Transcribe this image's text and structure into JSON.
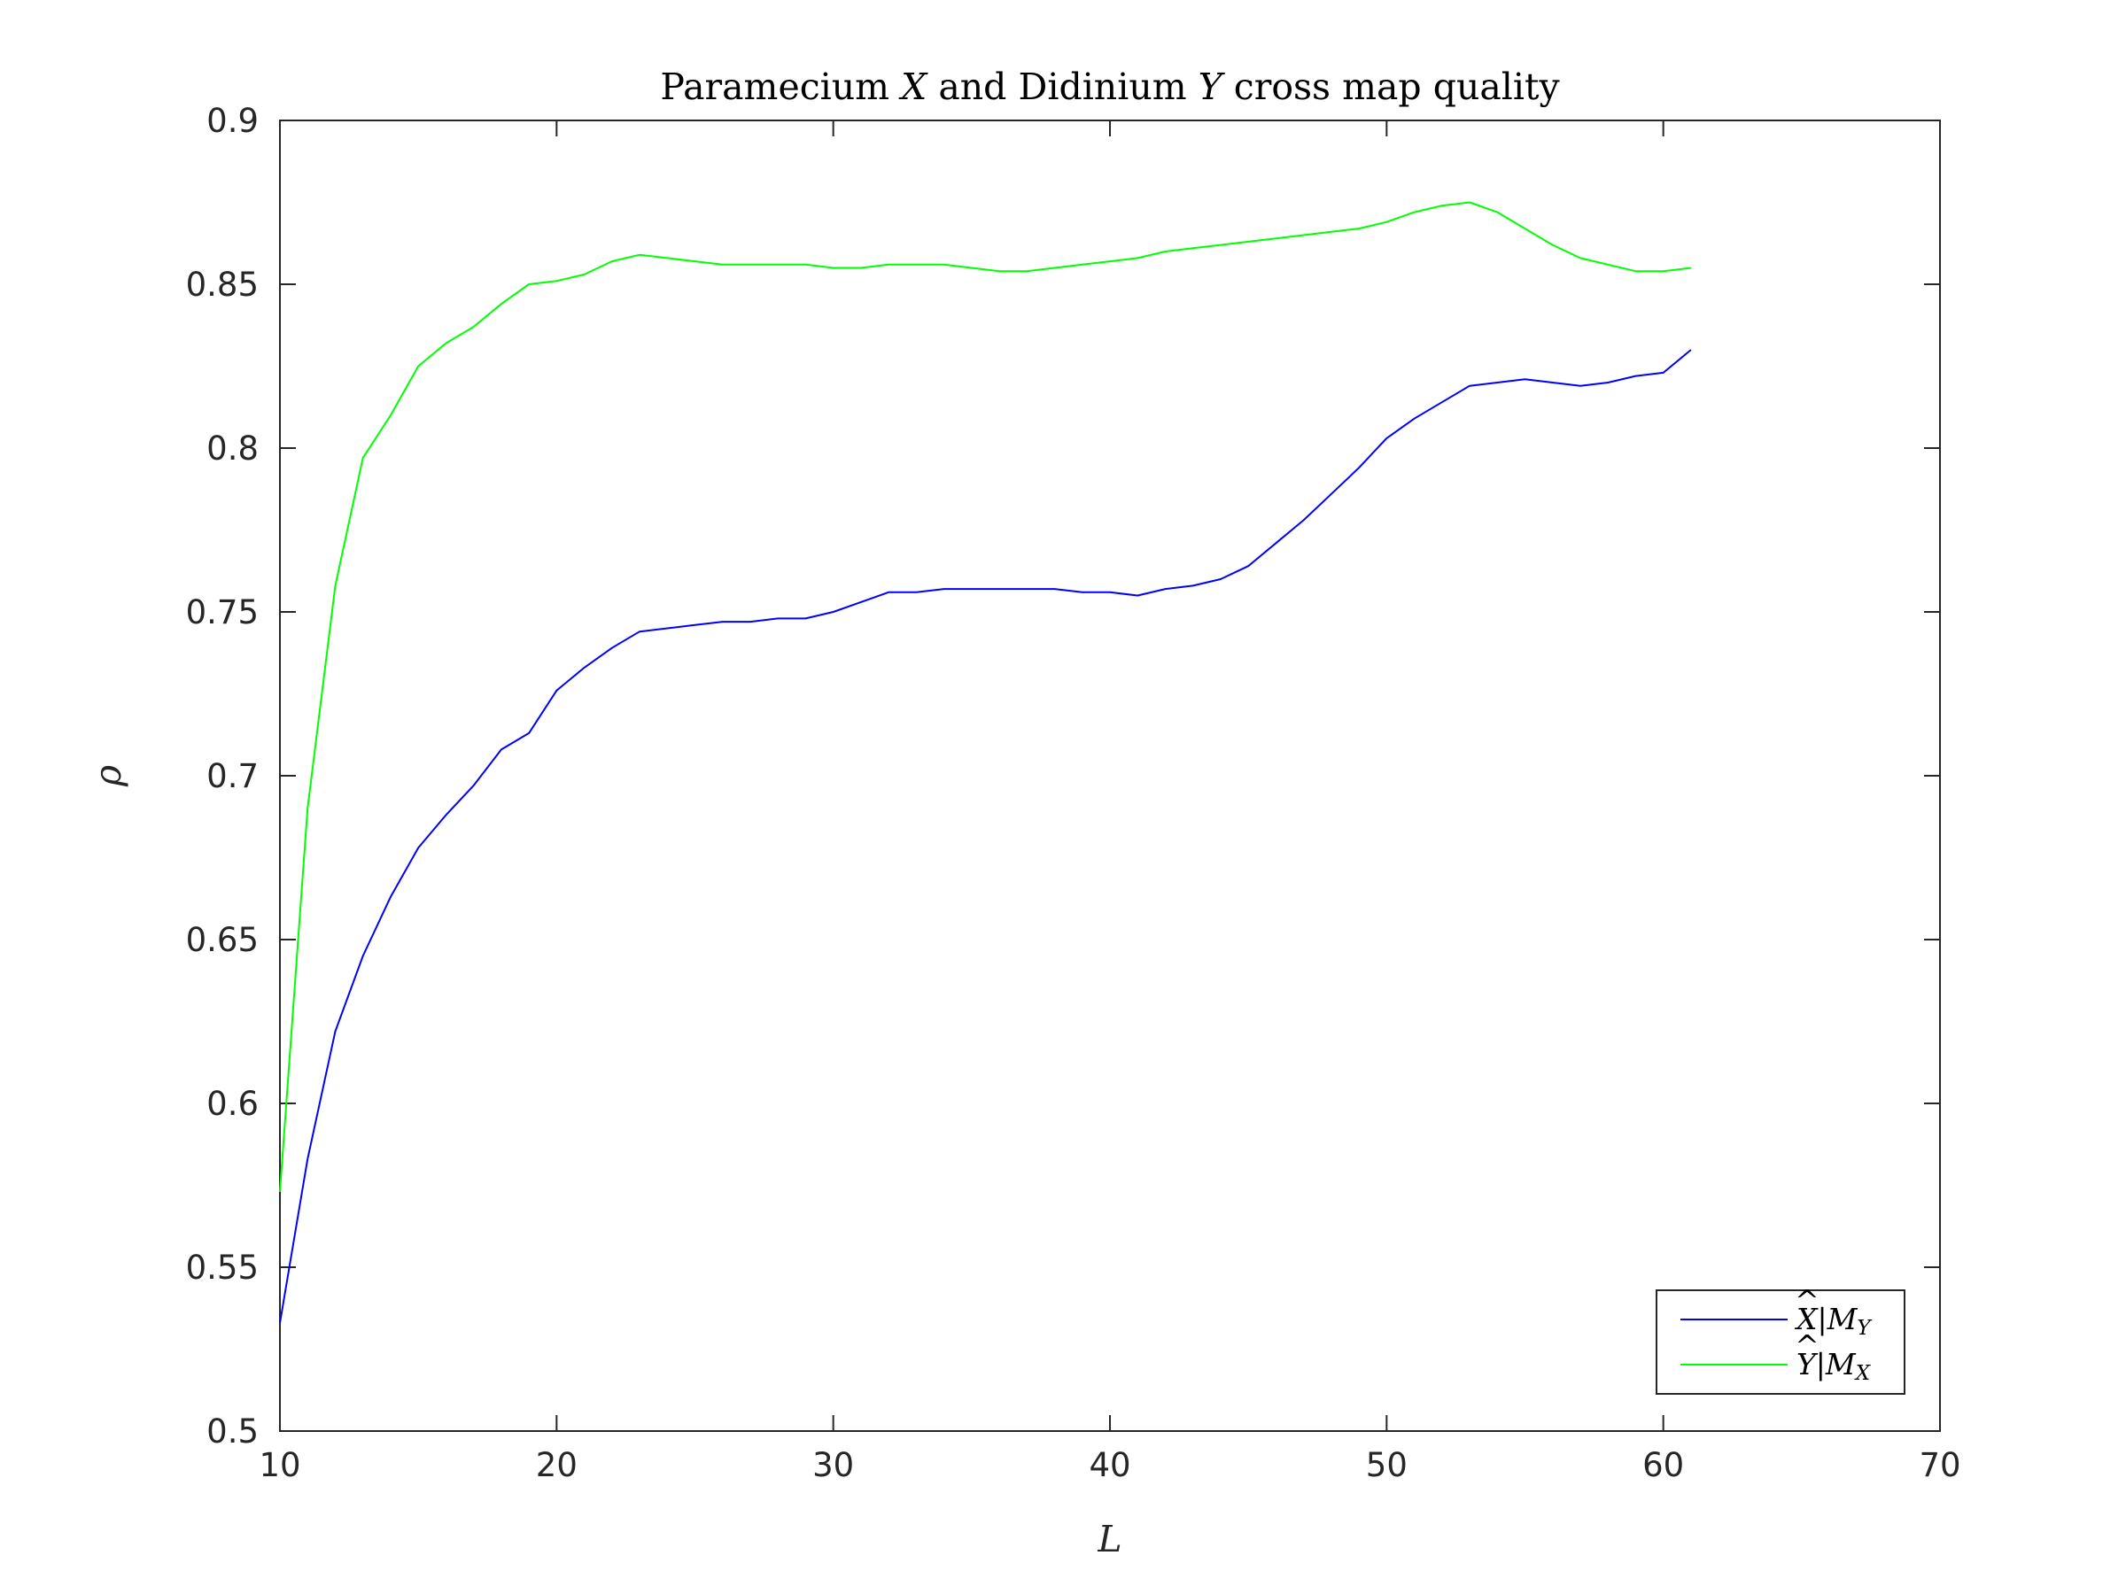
{
  "chart_data": {
    "type": "line",
    "title": {
      "prefix": "Paramecium ",
      "var1": "X",
      "middle": " and Didinium ",
      "var2": "Y",
      "suffix": " cross map quality"
    },
    "xlabel": "L",
    "ylabel": "ρ",
    "xlim": [
      10,
      70
    ],
    "ylim": [
      0.5,
      0.9
    ],
    "xticks": [
      10,
      20,
      30,
      40,
      50,
      60,
      70
    ],
    "yticks": [
      0.5,
      0.55,
      0.6,
      0.65,
      0.7,
      0.75,
      0.8,
      0.85,
      0.9
    ],
    "xtick_labels": [
      "10",
      "20",
      "30",
      "40",
      "50",
      "60",
      "70"
    ],
    "ytick_labels": [
      "0.5",
      "0.55",
      "0.6",
      "0.65",
      "0.7",
      "0.75",
      "0.8",
      "0.85",
      "0.9"
    ],
    "grid": false,
    "legend_position": "bottom-right",
    "x": [
      10,
      11,
      12,
      13,
      14,
      15,
      16,
      17,
      18,
      19,
      20,
      21,
      22,
      23,
      24,
      25,
      26,
      27,
      28,
      29,
      30,
      31,
      32,
      33,
      34,
      35,
      36,
      37,
      38,
      39,
      40,
      41,
      42,
      43,
      44,
      45,
      46,
      47,
      48,
      49,
      50,
      51,
      52,
      53,
      54,
      55,
      56,
      57,
      58,
      59,
      60,
      61
    ],
    "series": [
      {
        "legend": {
          "base": "X",
          "bar": "|",
          "m": "M",
          "sub": "Y"
        },
        "color": "#0000ff",
        "values": [
          0.533,
          0.583,
          0.622,
          0.645,
          0.663,
          0.678,
          0.688,
          0.697,
          0.708,
          0.713,
          0.726,
          0.733,
          0.739,
          0.744,
          0.745,
          0.746,
          0.747,
          0.747,
          0.748,
          0.748,
          0.75,
          0.753,
          0.756,
          0.756,
          0.757,
          0.757,
          0.757,
          0.757,
          0.757,
          0.756,
          0.756,
          0.755,
          0.757,
          0.758,
          0.76,
          0.764,
          0.771,
          0.778,
          0.786,
          0.794,
          0.803,
          0.809,
          0.814,
          0.819,
          0.82,
          0.821,
          0.82,
          0.819,
          0.82,
          0.822,
          0.823,
          0.83
        ]
      },
      {
        "legend": {
          "base": "Y",
          "bar": "|",
          "m": "M",
          "sub": "X"
        },
        "color": "#00ff00",
        "values": [
          0.573,
          0.69,
          0.758,
          0.797,
          0.81,
          0.825,
          0.832,
          0.837,
          0.844,
          0.85,
          0.851,
          0.853,
          0.857,
          0.859,
          0.858,
          0.857,
          0.856,
          0.856,
          0.856,
          0.856,
          0.855,
          0.855,
          0.856,
          0.856,
          0.856,
          0.855,
          0.854,
          0.854,
          0.855,
          0.856,
          0.857,
          0.858,
          0.86,
          0.861,
          0.862,
          0.863,
          0.864,
          0.865,
          0.866,
          0.867,
          0.869,
          0.872,
          0.874,
          0.875,
          0.872,
          0.867,
          0.862,
          0.858,
          0.856,
          0.854,
          0.854,
          0.855
        ]
      }
    ]
  }
}
